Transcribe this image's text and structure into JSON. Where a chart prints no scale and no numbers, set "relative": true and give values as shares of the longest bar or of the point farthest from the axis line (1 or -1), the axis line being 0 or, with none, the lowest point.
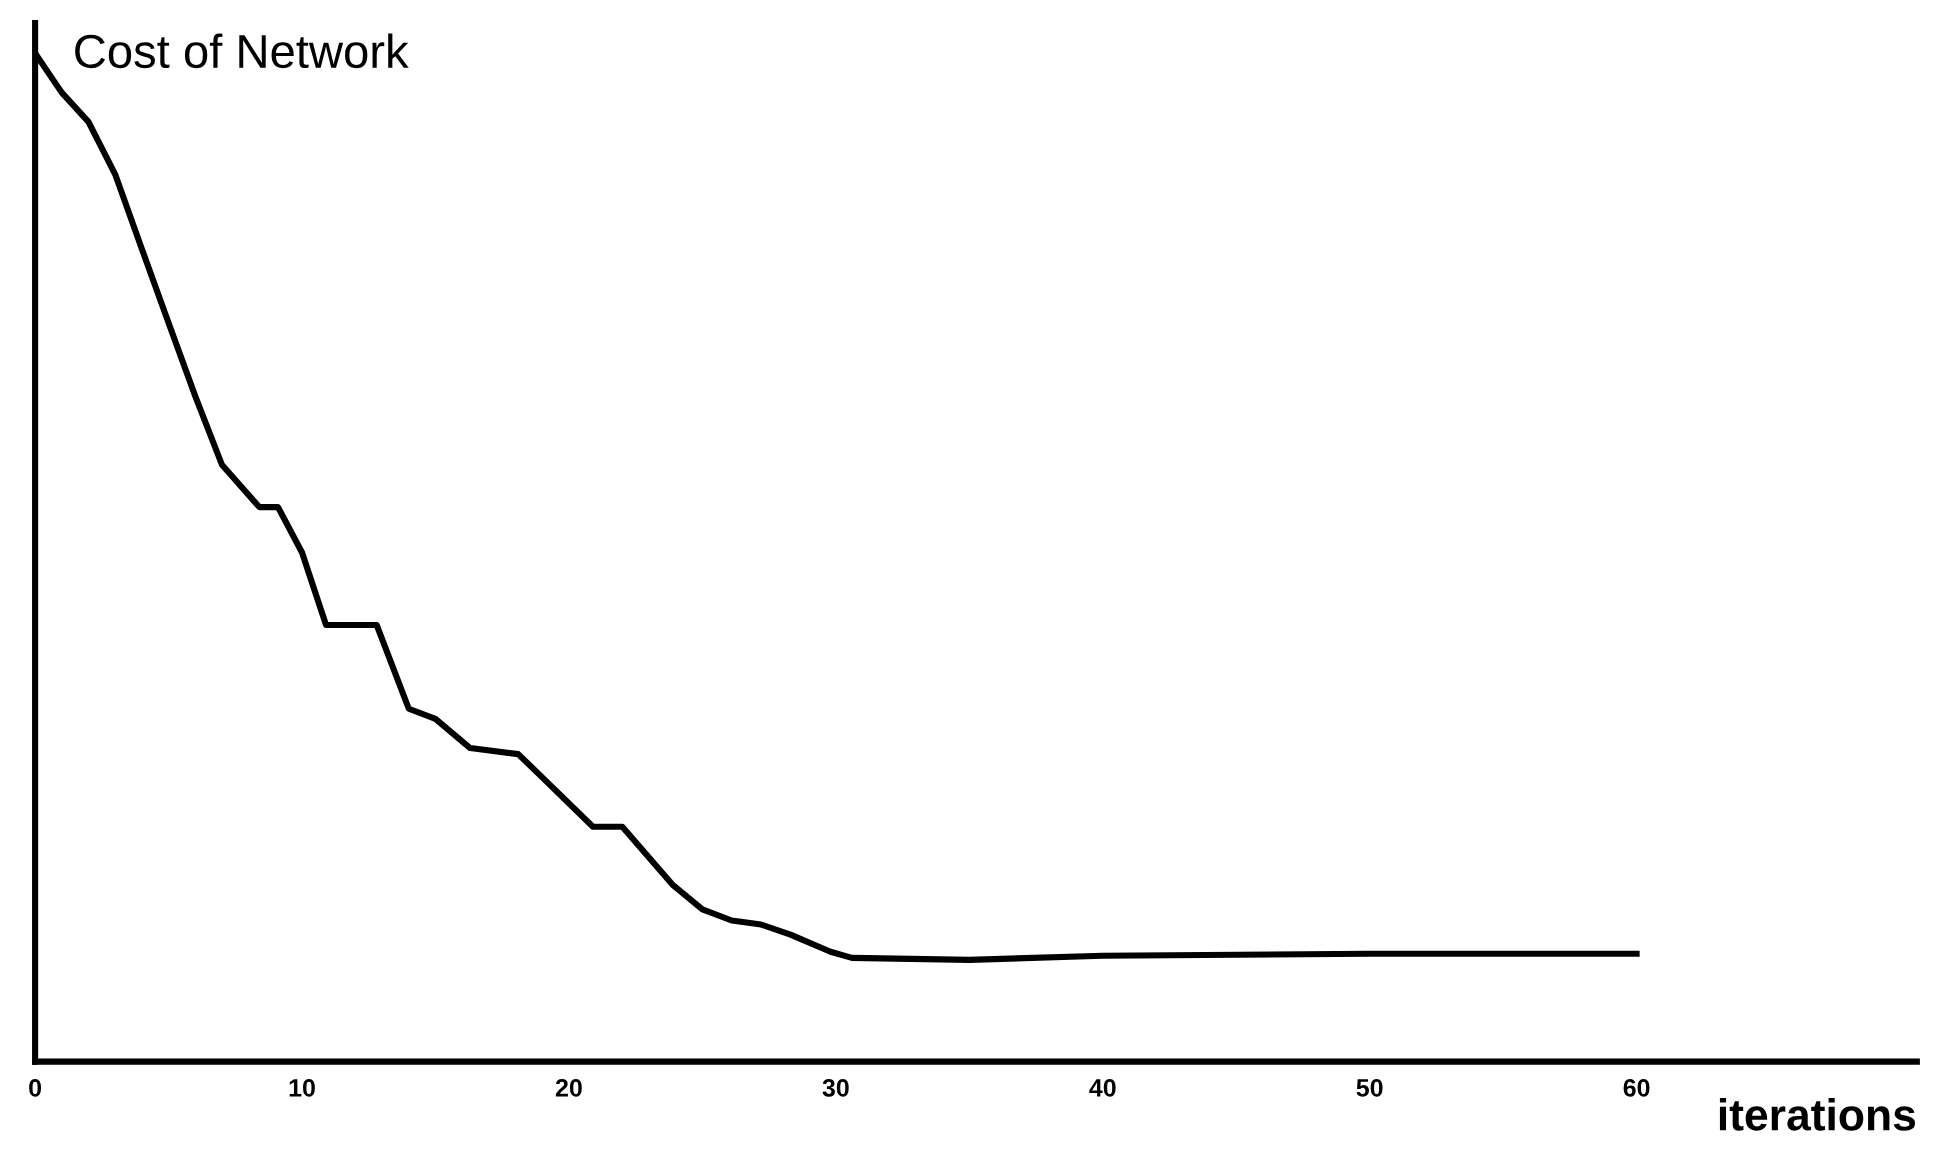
{
  "chart_data": {
    "type": "line",
    "ylabel": "Cost of Network",
    "xlabel": "iterations",
    "relative": true,
    "tick_labels": "x",
    "xlim": [
      0,
      70.5
    ],
    "xticks": [
      0,
      10,
      20,
      30,
      40,
      50,
      60
    ],
    "grid": false,
    "legend": false,
    "series": [
      {
        "color": "#000000",
        "x": [
          0,
          1,
          2,
          3,
          4,
          4.9,
          6,
          7,
          8.4,
          9.1,
          10,
          10.9,
          12.8,
          14,
          15,
          16.3,
          18.1,
          19,
          20.9,
          22,
          23.9,
          25,
          26.1,
          27.2,
          28.3,
          29.8,
          30.6,
          35,
          40,
          50,
          60
        ],
        "values": [
          1.0,
          0.961,
          0.932,
          0.88,
          0.806,
          0.74,
          0.66,
          0.592,
          0.55,
          0.55,
          0.505,
          0.433,
          0.433,
          0.35,
          0.34,
          0.311,
          0.305,
          0.282,
          0.233,
          0.233,
          0.175,
          0.151,
          0.14,
          0.136,
          0.126,
          0.109,
          0.103,
          0.101,
          0.105,
          0.107,
          0.107
        ]
      }
    ]
  }
}
